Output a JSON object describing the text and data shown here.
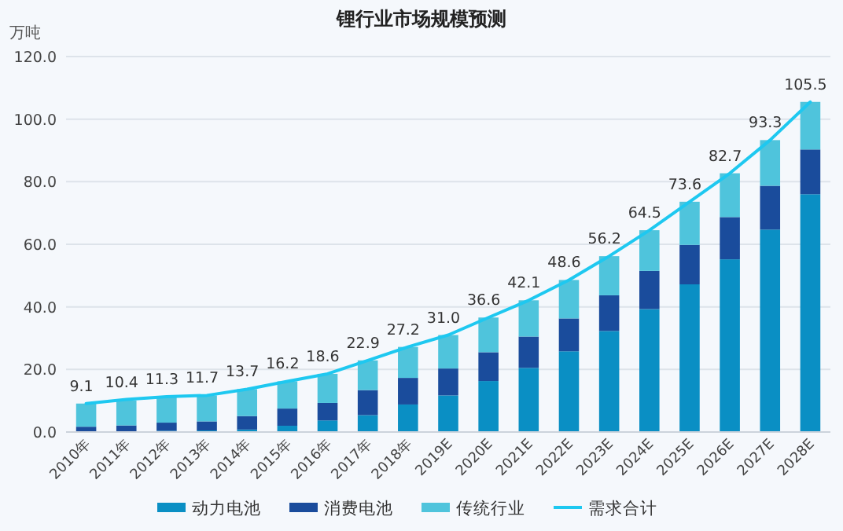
{
  "chart_data": {
    "type": "bar",
    "stacked": true,
    "title": "锂行业市场规模预测",
    "ylabel": "万吨",
    "categories": [
      "2010年",
      "2011年",
      "2012年",
      "2013年",
      "2014年",
      "2015年",
      "2016年",
      "2017年",
      "2018年",
      "2019E",
      "2020E",
      "2021E",
      "2022E",
      "2023E",
      "2024E",
      "2025E",
      "2026E",
      "2027E",
      "2028E"
    ],
    "series": [
      {
        "name": "动力电池",
        "color": "#0a8fc4",
        "values": [
          0.2,
          null,
          0.4,
          0.5,
          0.8,
          2.0,
          3.7,
          5.4,
          8.8,
          11.7,
          16.3,
          20.5,
          25.8,
          32.3,
          39.3,
          47.2,
          55.2,
          64.7,
          76.0
        ]
      },
      {
        "name": "消费电池",
        "color": "#1a4c9c",
        "values": [
          1.5,
          2.1,
          2.6,
          2.9,
          4.3,
          5.5,
          5.6,
          8.0,
          8.5,
          8.6,
          9.2,
          10.0,
          10.5,
          11.4,
          12.2,
          12.6,
          13.5,
          14.0,
          14.3
        ]
      },
      {
        "name": "传统行业",
        "color": "#4fc4dc",
        "values": [
          7.4,
          8.0,
          8.3,
          8.3,
          8.6,
          8.7,
          9.3,
          9.5,
          9.9,
          10.7,
          11.1,
          11.6,
          12.3,
          12.5,
          13.0,
          13.8,
          14.0,
          14.6,
          15.2
        ]
      },
      {
        "name": "需求合计",
        "type": "line",
        "color": "#1ec8f0",
        "values": [
          9.1,
          10.4,
          11.3,
          11.7,
          13.7,
          16.2,
          18.6,
          22.9,
          27.2,
          31.0,
          36.6,
          42.1,
          48.6,
          56.2,
          64.5,
          73.6,
          82.7,
          93.3,
          105.5
        ],
        "value_labels": [
          "9.1",
          "10.4",
          "11.3",
          "11.7",
          "13.7",
          "16.2",
          "18.6",
          "22.9",
          "27.2",
          "31.0",
          "36.6",
          "42.1",
          "48.6",
          "56.2",
          "64.5",
          "73.6",
          "82.7",
          "93.3",
          "105.5"
        ]
      }
    ],
    "ylim": [
      0,
      120
    ],
    "yticks": [
      {
        "value": 0,
        "label": "0.0"
      },
      {
        "value": 20,
        "label": "20.0"
      },
      {
        "value": 40,
        "label": "40.0"
      },
      {
        "value": 60,
        "label": "60.0"
      },
      {
        "value": 80,
        "label": "80.0"
      },
      {
        "value": 100,
        "label": "100.0"
      },
      {
        "value": 120,
        "label": "120.0"
      }
    ],
    "grid": "y",
    "legend": "bottom"
  }
}
